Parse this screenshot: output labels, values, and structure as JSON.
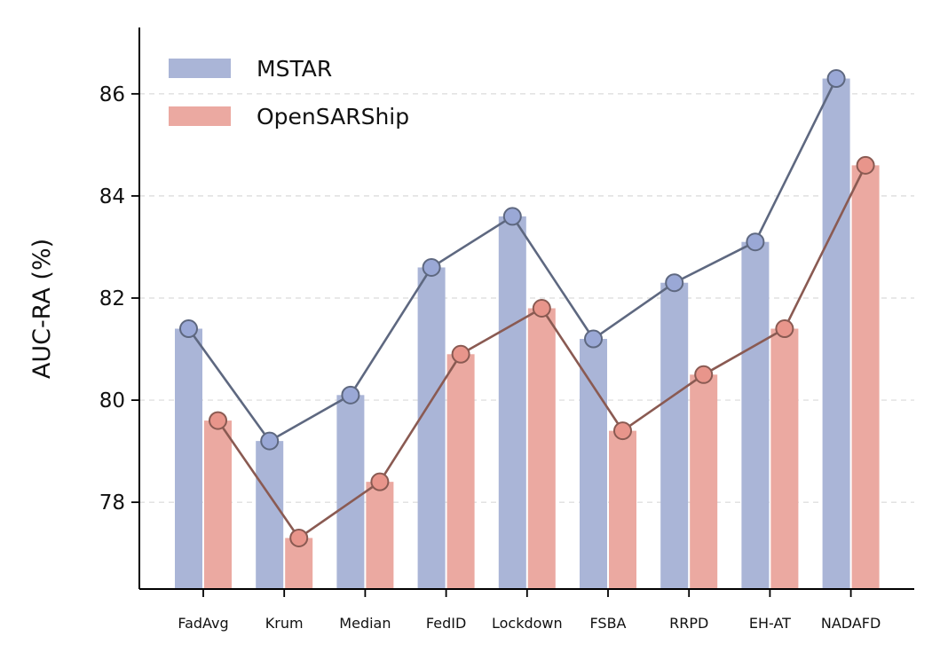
{
  "chart_data": {
    "type": "bar",
    "title": "",
    "xlabel": "",
    "ylabel": "AUC-RA (%)",
    "ylim": [
      76.3,
      87.3
    ],
    "yticks": [
      78,
      80,
      82,
      84,
      86
    ],
    "grid": "horizontal dashed",
    "legend_position": "top-left",
    "categories": [
      "FadAvg",
      "Krum",
      "Median",
      "FedID",
      "Lockdown",
      "FSBA",
      "RRPD",
      "EH-AT",
      "NADAFD"
    ],
    "series": [
      {
        "name": "MSTAR",
        "values": [
          81.4,
          79.2,
          80.1,
          82.6,
          83.6,
          81.2,
          82.3,
          83.1,
          86.3
        ],
        "bar_color": "#aab5d7",
        "line_color": "#5e6880",
        "marker_color": "#9aa8d6"
      },
      {
        "name": "OpenSARShip",
        "values": [
          79.6,
          77.3,
          78.4,
          80.9,
          81.8,
          79.4,
          80.5,
          81.4,
          84.6
        ],
        "bar_color": "#eba9a1",
        "line_color": "#8a5a52",
        "marker_color": "#e8958b"
      }
    ]
  }
}
